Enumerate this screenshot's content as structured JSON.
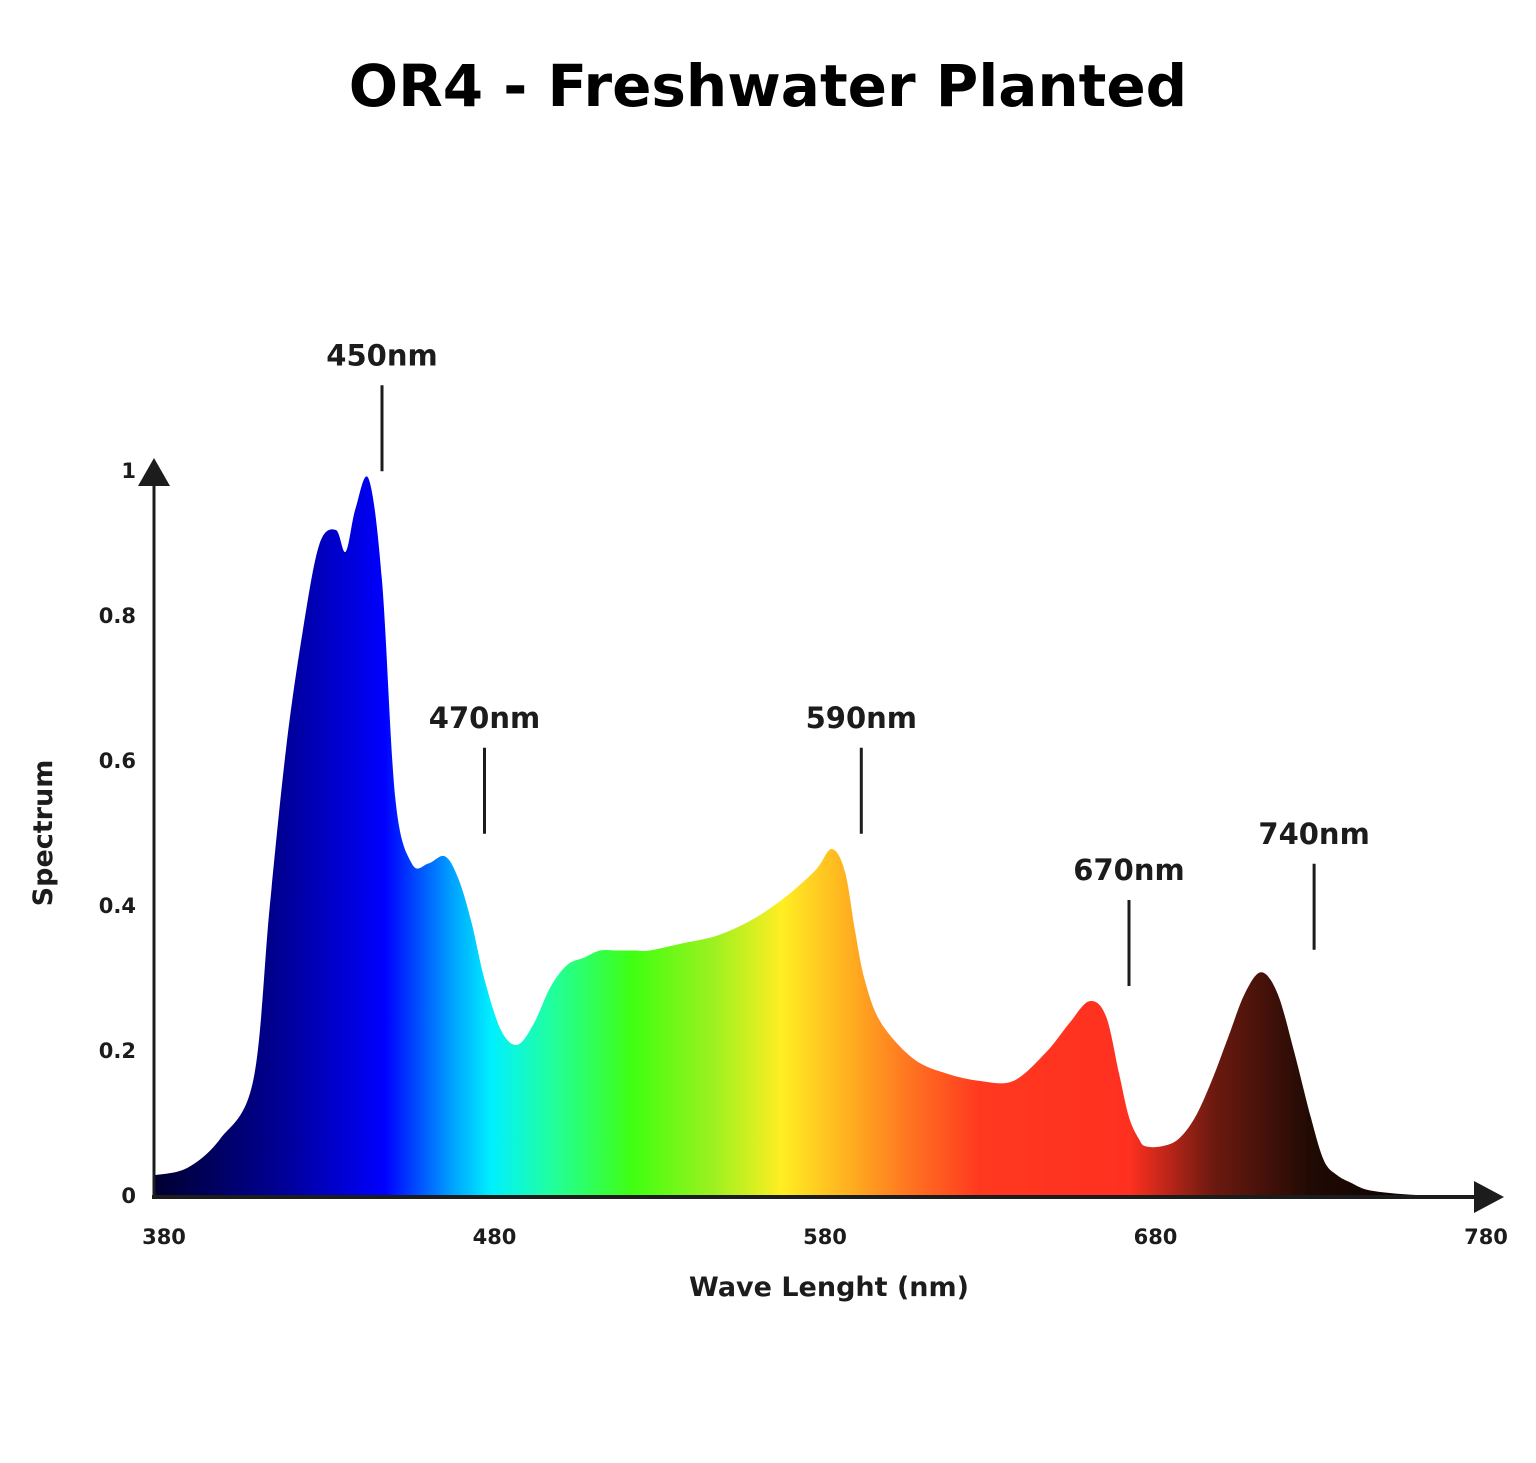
{
  "chart_data": {
    "type": "area",
    "title": "OR4 - Freshwater Planted",
    "xlabel": "Wave Lenght (nm)",
    "ylabel": "Spectrum",
    "xlim": [
      380,
      780
    ],
    "ylim": [
      0,
      1
    ],
    "x_ticks": [
      "380",
      "480",
      "580",
      "680",
      "780"
    ],
    "y_ticks": [
      "0",
      "0.2",
      "0.4",
      "0.6",
      "0.8",
      "1"
    ],
    "grid": false,
    "legend": "none",
    "series": [
      {
        "x": [
          380,
          390,
          400,
          410,
          415,
          420,
          425,
          430,
          435,
          438,
          441,
          445,
          449,
          453,
          458,
          463,
          468,
          472,
          476,
          480,
          485,
          490,
          495,
          500,
          505,
          510,
          515,
          520,
          525,
          530,
          540,
          550,
          560,
          570,
          580,
          585,
          589,
          592,
          595,
          600,
          610,
          620,
          630,
          640,
          650,
          657,
          663,
          668,
          672,
          675,
          678,
          680,
          685,
          690,
          695,
          700,
          705,
          710,
          715,
          720,
          725,
          730,
          734,
          738,
          742,
          747,
          755,
          765,
          775,
          780
        ],
        "y": [
          0.03,
          0.04,
          0.08,
          0.16,
          0.4,
          0.62,
          0.78,
          0.9,
          0.92,
          0.89,
          0.95,
          0.99,
          0.85,
          0.55,
          0.46,
          0.46,
          0.47,
          0.44,
          0.38,
          0.3,
          0.23,
          0.21,
          0.24,
          0.29,
          0.32,
          0.33,
          0.34,
          0.34,
          0.34,
          0.34,
          0.35,
          0.36,
          0.38,
          0.41,
          0.45,
          0.48,
          0.45,
          0.37,
          0.3,
          0.24,
          0.19,
          0.17,
          0.16,
          0.16,
          0.2,
          0.24,
          0.27,
          0.25,
          0.17,
          0.11,
          0.08,
          0.07,
          0.07,
          0.08,
          0.11,
          0.16,
          0.22,
          0.28,
          0.31,
          0.28,
          0.2,
          0.11,
          0.05,
          0.03,
          0.02,
          0.01,
          0.005,
          0.002,
          0.0,
          0.0
        ]
      }
    ],
    "gradient_stops": [
      {
        "nm": 380,
        "color": "#000030"
      },
      {
        "nm": 420,
        "color": "#000099"
      },
      {
        "nm": 450,
        "color": "#0000ff"
      },
      {
        "nm": 470,
        "color": "#00a0ff"
      },
      {
        "nm": 482,
        "color": "#00f0ff"
      },
      {
        "nm": 500,
        "color": "#20ffa0"
      },
      {
        "nm": 525,
        "color": "#40ff10"
      },
      {
        "nm": 550,
        "color": "#a0f020"
      },
      {
        "nm": 570,
        "color": "#ffee22"
      },
      {
        "nm": 590,
        "color": "#ffb020"
      },
      {
        "nm": 610,
        "color": "#ff7020"
      },
      {
        "nm": 630,
        "color": "#ff3820"
      },
      {
        "nm": 675,
        "color": "#ff3020"
      },
      {
        "nm": 700,
        "color": "#6e1a10"
      },
      {
        "nm": 730,
        "color": "#200a04"
      },
      {
        "nm": 780,
        "color": "#000000"
      }
    ],
    "annotations": [
      {
        "label": "450nm",
        "x": 449,
        "y": 0.99
      },
      {
        "label": "470nm",
        "x": 480,
        "y": 0.49
      },
      {
        "label": "590nm",
        "x": 594,
        "y": 0.49
      },
      {
        "label": "670nm",
        "x": 675,
        "y": 0.28
      },
      {
        "label": "740nm",
        "x": 731,
        "y": 0.33
      }
    ]
  }
}
